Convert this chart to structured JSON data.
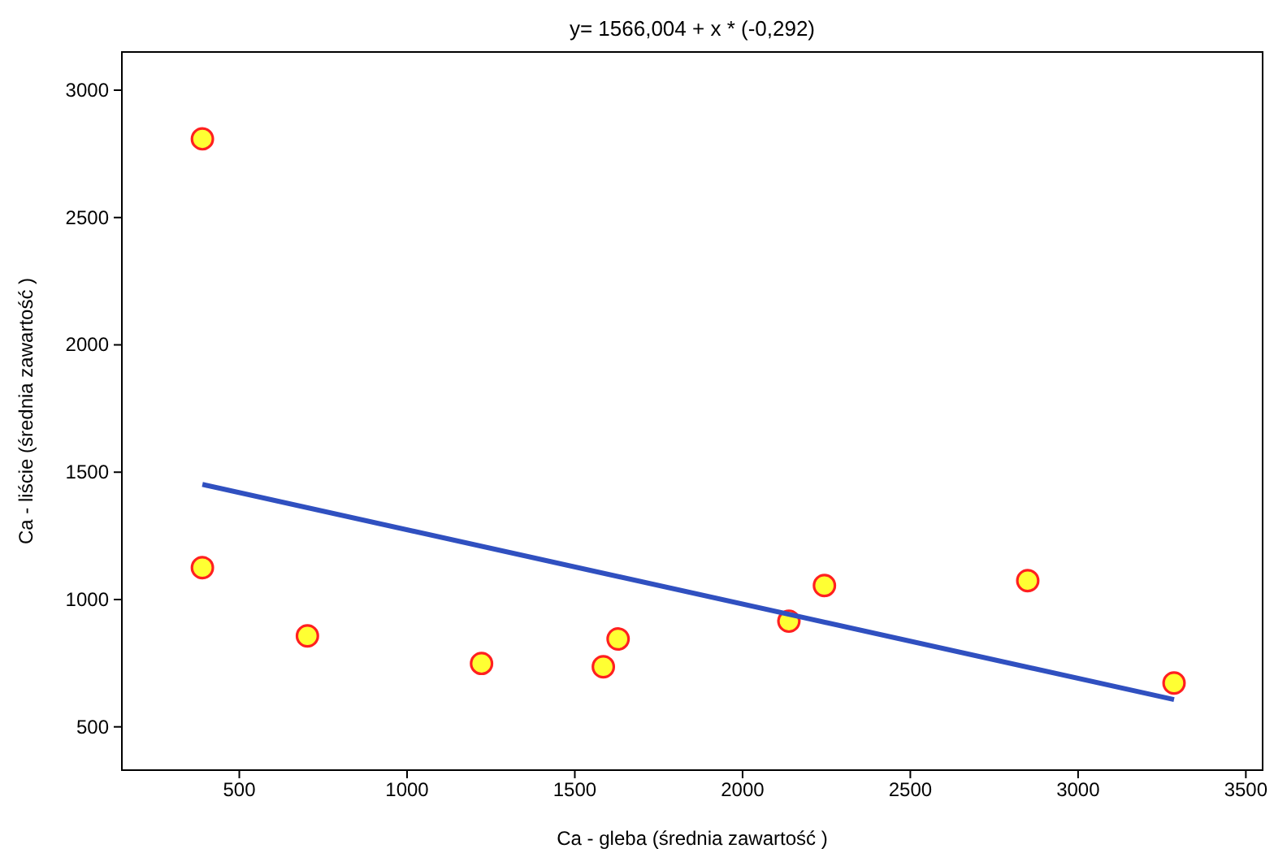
{
  "chart_data": {
    "type": "scatter",
    "title": "y= 1566,004 + x * (-0,292)",
    "xlabel": "Ca - gleba (średnia zawartość )",
    "ylabel": "Ca - liście (średnia zawartość )",
    "xlim": [
      150,
      3550
    ],
    "ylim": [
      330,
      3150
    ],
    "xticks": [
      500,
      1000,
      1500,
      2000,
      2500,
      3000,
      3500
    ],
    "yticks": [
      500,
      1000,
      1500,
      2000,
      2500,
      3000
    ],
    "grid": false,
    "series": [
      {
        "marker": "circle",
        "color": "#ffff33",
        "x": [
          390,
          390,
          703,
          1222,
          1585,
          1629,
          2138,
          2244,
          2850,
          3286
        ],
        "values": [
          2809,
          1125,
          857,
          749,
          736,
          845,
          915,
          1055,
          1074,
          672
        ]
      },
      {
        "type": "line",
        "color": "#3050c0",
        "x": [
          390,
          3286
        ],
        "values": [
          1452,
          607
        ]
      }
    ]
  }
}
